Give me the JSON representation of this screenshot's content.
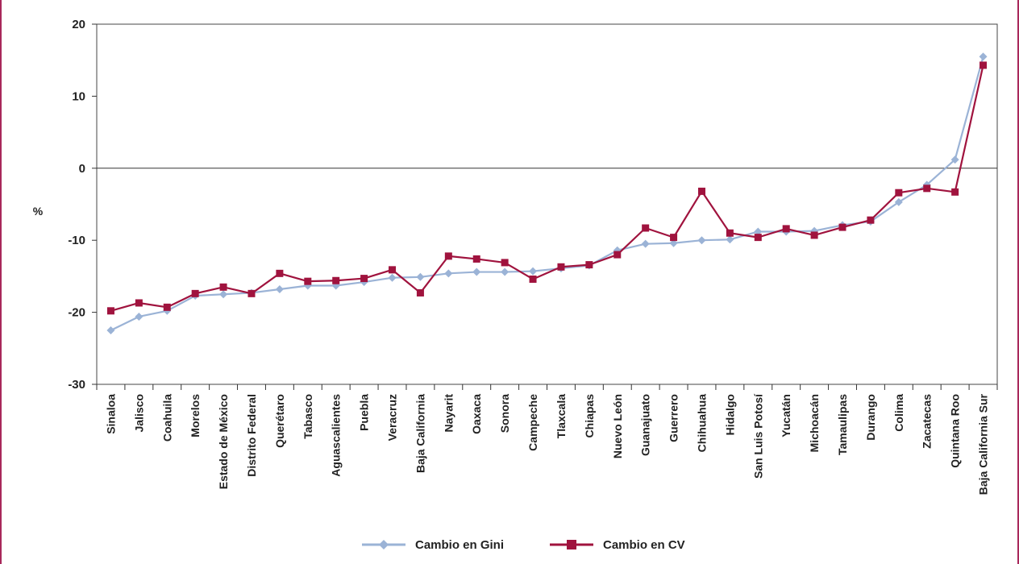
{
  "chart_data": {
    "type": "line",
    "title": "",
    "xlabel": "",
    "ylabel": "%",
    "ylim": [
      -30,
      20
    ],
    "yticks": [
      20,
      10,
      0,
      -10,
      -20,
      -30
    ],
    "grid": false,
    "legend_position": "bottom",
    "categories": [
      "Sinaloa",
      "Jalisco",
      "Coahuila",
      "Morelos",
      "Estado de México",
      "Distrito Federal",
      "Querétaro",
      "Tabasco",
      "Aguascalientes",
      "Puebla",
      "Veracruz",
      "Baja California",
      "Nayarit",
      "Oaxaca",
      "Sonora",
      "Campeche",
      "Tlaxcala",
      "Chiapas",
      "Nuevo León",
      "Guanajuato",
      "Guerrero",
      "Chihuahua",
      "Hidalgo",
      "San Luis Potosí",
      "Yucatán",
      "Michoacán",
      "Tamaulipas",
      "Durango",
      "Colima",
      "Zacatecas",
      "Quintana Roo",
      "Baja California Sur"
    ],
    "series": [
      {
        "name": "Cambio en Gini",
        "color": "#9bb3d6",
        "marker": "diamond",
        "values": [
          -22.5,
          -20.6,
          -19.8,
          -17.7,
          -17.5,
          -17.3,
          -16.8,
          -16.3,
          -16.3,
          -15.8,
          -15.2,
          -15.1,
          -14.6,
          -14.4,
          -14.4,
          -14.3,
          -13.9,
          -13.5,
          -11.4,
          -10.5,
          -10.4,
          -10.0,
          -9.9,
          -8.8,
          -8.8,
          -8.7,
          -7.9,
          -7.4,
          -4.7,
          -2.3,
          1.2,
          15.5
        ]
      },
      {
        "name": "Cambio en CV",
        "color": "#a0133e",
        "marker": "square",
        "values": [
          -19.8,
          -18.7,
          -19.3,
          -17.4,
          -16.5,
          -17.4,
          -14.6,
          -15.7,
          -15.6,
          -15.3,
          -14.1,
          -17.3,
          -12.2,
          -12.6,
          -13.1,
          -15.4,
          -13.7,
          -13.4,
          -12.0,
          -8.3,
          -9.6,
          -3.2,
          -9.0,
          -9.6,
          -8.4,
          -9.3,
          -8.2,
          -7.2,
          -3.4,
          -2.8,
          -3.3,
          14.3
        ]
      }
    ]
  }
}
